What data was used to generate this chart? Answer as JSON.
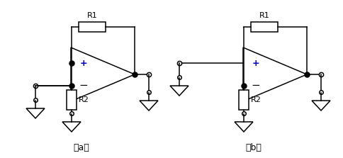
{
  "fig_width": 4.85,
  "fig_height": 2.23,
  "dpi": 100,
  "bg_color": "#ffffff",
  "line_color": "#000000",
  "line_width": 1.1,
  "label_a": "（a）",
  "label_b": "（b）",
  "R1_label": "R1",
  "R2_label": "R2",
  "plus_color": "#0000cc",
  "minus_color": "#555500"
}
